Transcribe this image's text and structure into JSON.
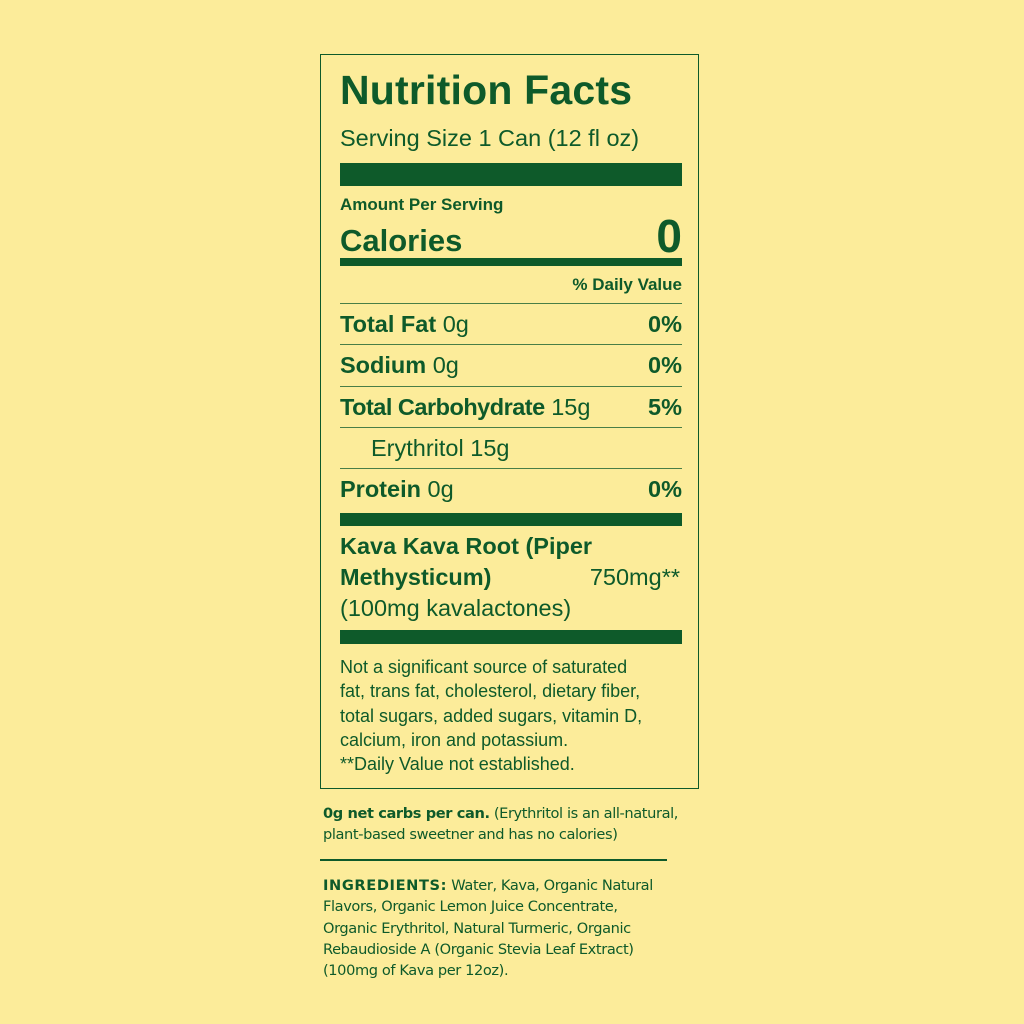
{
  "colors": {
    "background": "#FCEC9A",
    "green": "#0E5A2A"
  },
  "label": {
    "title": "Nutrition Facts",
    "serving_size": "Serving Size 1 Can (12 fl oz)",
    "amount_per_serving": "Amount Per Serving",
    "calories_label": "Calories",
    "calories_value": "0",
    "daily_value_header": "% Daily Value",
    "rows": [
      {
        "name": "Total Fat",
        "amount": "0g",
        "dv": "0%"
      },
      {
        "name": "Sodium",
        "amount": "0g",
        "dv": "0%"
      },
      {
        "name": "Total Carbohydrate",
        "amount": "15g",
        "dv": "5%"
      },
      {
        "name": "",
        "amount": "Erythritol 15g",
        "dv": ""
      },
      {
        "name": "Protein",
        "amount": "0g",
        "dv": "0%"
      }
    ],
    "kava_line1": "Kava Kava Root (Piper",
    "kava_line2": "Methysticum)",
    "kava_amount": "750mg**",
    "kava_line3": "(100mg kavalactones)",
    "footnote": [
      "Not a significant source of saturated",
      "fat, trans fat, cholesterol, dietary fiber,",
      "total sugars, added sugars, vitamin D,",
      "calcium, iron and potassium.",
      "**Daily Value not established."
    ]
  },
  "net_carbs": {
    "bold": "0g net carbs per can.",
    "line1_rest": " (Erythritol is an all-natural,",
    "line2": "plant-based sweetner and has no calories)"
  },
  "ingredients": {
    "heading": "INGREDIENTS:",
    "line1_rest": " Water, Kava, Organic Natural",
    "lines": [
      "Flavors, Organic Lemon Juice Concentrate,",
      "Organic Erythritol, Natural Turmeric, Organic",
      "Rebaudioside A (Organic Stevia Leaf Extract)",
      "(100mg of Kava per 12oz)."
    ]
  }
}
